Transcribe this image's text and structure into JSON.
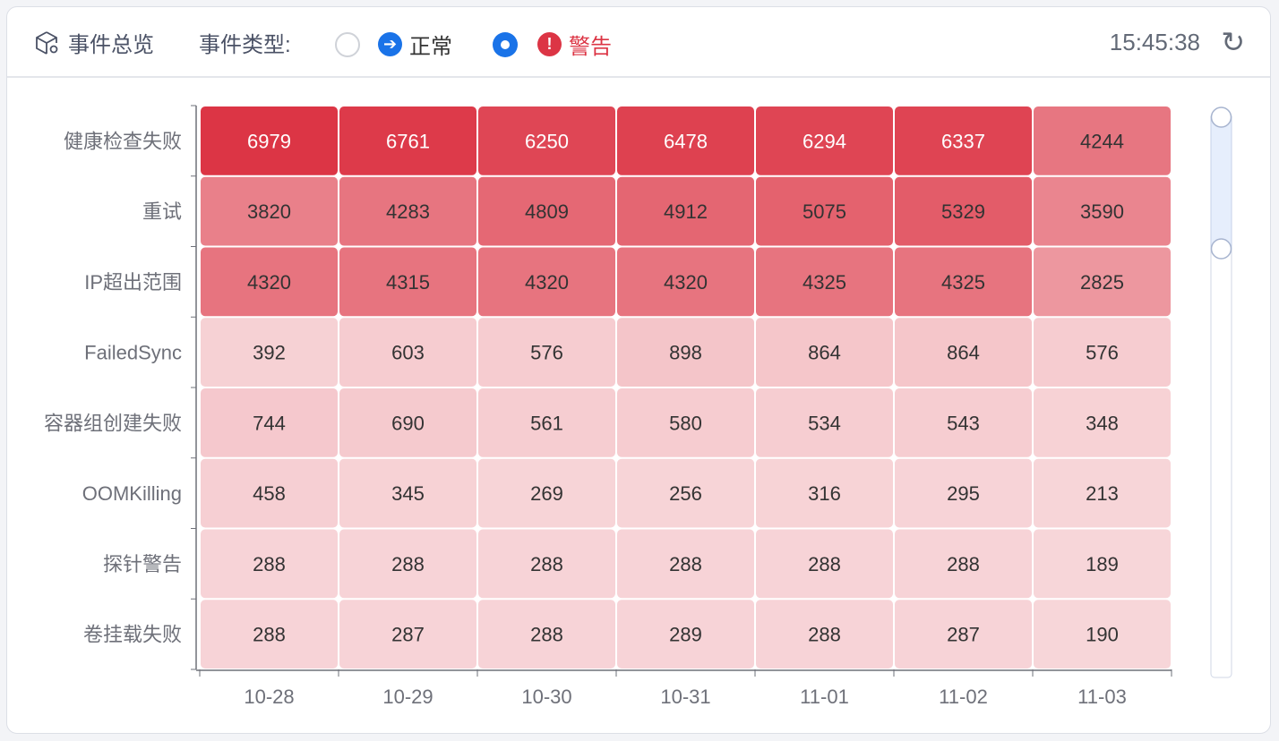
{
  "header": {
    "title": "事件总览",
    "title_icon": "cube-gear-icon",
    "filter_label": "事件类型:",
    "options": [
      {
        "label": "正常",
        "selected": false,
        "icon": "arrow-right-circle-icon",
        "color": "#1a73e8"
      },
      {
        "label": "警告",
        "selected": true,
        "icon": "exclamation-circle-icon",
        "color": "#dc3545"
      }
    ],
    "time": "15:45:38",
    "refresh_icon": "refresh-icon"
  },
  "chart_data": {
    "type": "heatmap",
    "x_categories": [
      "10-28",
      "10-29",
      "10-30",
      "10-31",
      "11-01",
      "11-02",
      "11-03"
    ],
    "y_categories": [
      "健康检查失败",
      "重试",
      "IP超出范围",
      "FailedSync",
      "容器组创建失败",
      "OOMKilling",
      "探针警告",
      "卷挂载失败"
    ],
    "values": [
      [
        6979,
        6761,
        6250,
        6478,
        6294,
        6337,
        4244
      ],
      [
        3820,
        4283,
        4809,
        4912,
        5075,
        5329,
        3590
      ],
      [
        4320,
        4315,
        4320,
        4320,
        4325,
        4325,
        2825
      ],
      [
        392,
        603,
        576,
        898,
        864,
        864,
        576
      ],
      [
        744,
        690,
        561,
        580,
        534,
        543,
        348
      ],
      [
        458,
        345,
        269,
        256,
        316,
        295,
        213
      ],
      [
        288,
        288,
        288,
        288,
        288,
        288,
        189
      ],
      [
        288,
        287,
        288,
        289,
        288,
        287,
        190
      ]
    ],
    "color_range": [
      "#f8dadd",
      "#dc3545"
    ],
    "visual_map": {
      "orientation": "vertical",
      "type": "continuous"
    }
  }
}
